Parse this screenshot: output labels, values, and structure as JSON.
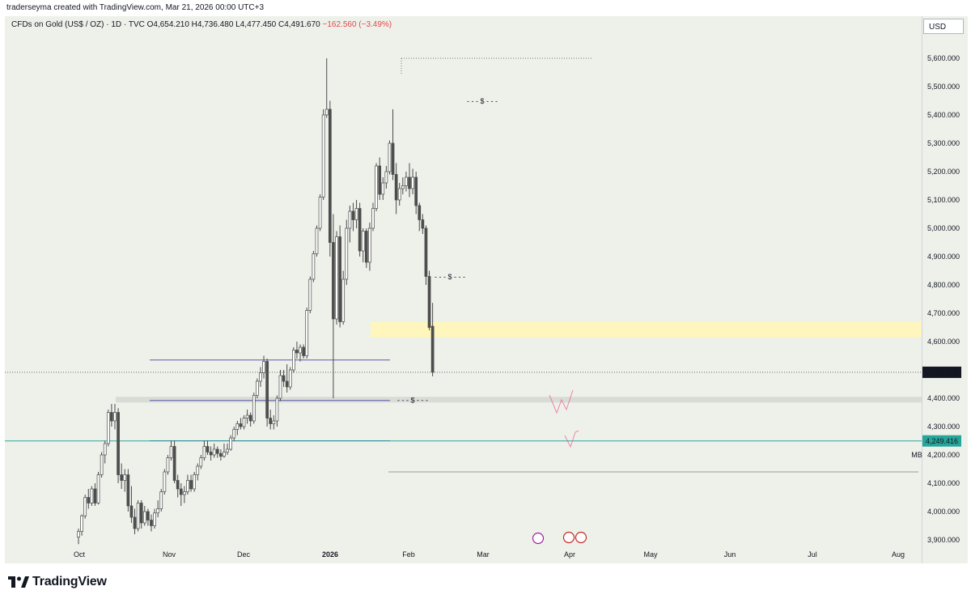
{
  "header": {
    "caption": "traderseyma created with TradingView.com, Mar 21, 2026 00:00 UTC+3"
  },
  "legend": {
    "symbol": "CFDs on Gold (US$ / OZ) · 1D · TVC",
    "open": "O4,654.210",
    "high": "H4,736.480",
    "low": "L4,477.450",
    "close": "C4,491.670",
    "change": "−162.560 (−3.49%)"
  },
  "price_scale": {
    "currency": "USD"
  },
  "colors": {
    "up": "#ffffff",
    "down": "#4e4e4e",
    "wick": "#4a4a4a",
    "zone": "#fff6b8",
    "support": "#26a69a",
    "level": "#5a5aa8",
    "marker": "#ec407a"
  },
  "chart_data": {
    "type": "candlestick",
    "y_ticks": [
      "5,600.000",
      "5,500.000",
      "5,400.000",
      "5,300.000",
      "5,200.000",
      "5,100.000",
      "5,000.000",
      "4,900.000",
      "4,800.000",
      "4,700.000",
      "4,600.000",
      "4,500.000",
      "4,400.000",
      "4,300.000",
      "4,200.000",
      "4,100.000",
      "4,000.000",
      "3,900.000"
    ],
    "ylim": [
      3880,
      5650
    ],
    "x_ticks": [
      "Oct",
      "Nov",
      "Dec",
      "2026",
      "Feb",
      "Mar",
      "Apr",
      "May",
      "Jun",
      "Jul",
      "Aug"
    ],
    "last_price": {
      "value": 4491.67,
      "label": "4,491.670"
    },
    "support_line": {
      "value": 4249.416,
      "label": "4,249.416"
    },
    "zone": {
      "from": 4615,
      "to": 4670
    },
    "grey_band": {
      "from": 4385,
      "to": 4405
    },
    "extra_label": "MB",
    "series": [
      {
        "o": 3910,
        "h": 3940,
        "l": 3885,
        "c": 3930
      },
      {
        "o": 3930,
        "h": 3990,
        "l": 3915,
        "c": 3985
      },
      {
        "o": 3985,
        "h": 4060,
        "l": 3975,
        "c": 4050
      },
      {
        "o": 4050,
        "h": 4080,
        "l": 4010,
        "c": 4030
      },
      {
        "o": 4030,
        "h": 4090,
        "l": 4020,
        "c": 4080
      },
      {
        "o": 4080,
        "h": 4100,
        "l": 4020,
        "c": 4030
      },
      {
        "o": 4030,
        "h": 4140,
        "l": 4025,
        "c": 4130
      },
      {
        "o": 4130,
        "h": 4210,
        "l": 4120,
        "c": 4200
      },
      {
        "o": 4200,
        "h": 4250,
        "l": 4170,
        "c": 4240
      },
      {
        "o": 4240,
        "h": 4360,
        "l": 4230,
        "c": 4350
      },
      {
        "o": 4350,
        "h": 4380,
        "l": 4300,
        "c": 4320
      },
      {
        "o": 4320,
        "h": 4380,
        "l": 4290,
        "c": 4350
      },
      {
        "o": 4350,
        "h": 4365,
        "l": 4100,
        "c": 4130
      },
      {
        "o": 4130,
        "h": 4170,
        "l": 4080,
        "c": 4110
      },
      {
        "o": 4110,
        "h": 4150,
        "l": 4070,
        "c": 4130
      },
      {
        "o": 4130,
        "h": 4150,
        "l": 4000,
        "c": 4020
      },
      {
        "o": 4020,
        "h": 4090,
        "l": 3960,
        "c": 3980
      },
      {
        "o": 3980,
        "h": 4010,
        "l": 3920,
        "c": 3940
      },
      {
        "o": 3940,
        "h": 4040,
        "l": 3930,
        "c": 4030
      },
      {
        "o": 4030,
        "h": 4040,
        "l": 3940,
        "c": 3960
      },
      {
        "o": 3960,
        "h": 4020,
        "l": 3950,
        "c": 4000
      },
      {
        "o": 4000,
        "h": 4010,
        "l": 3950,
        "c": 3970
      },
      {
        "o": 3970,
        "h": 3990,
        "l": 3930,
        "c": 3950
      },
      {
        "o": 3950,
        "h": 4010,
        "l": 3940,
        "c": 3995
      },
      {
        "o": 3995,
        "h": 4040,
        "l": 3980,
        "c": 4010
      },
      {
        "o": 4010,
        "h": 4080,
        "l": 4000,
        "c": 4070
      },
      {
        "o": 4070,
        "h": 4150,
        "l": 4060,
        "c": 4140
      },
      {
        "o": 4140,
        "h": 4200,
        "l": 4130,
        "c": 4190
      },
      {
        "o": 4190,
        "h": 4250,
        "l": 4180,
        "c": 4230
      },
      {
        "o": 4230,
        "h": 4250,
        "l": 4100,
        "c": 4110
      },
      {
        "o": 4110,
        "h": 4130,
        "l": 4050,
        "c": 4080
      },
      {
        "o": 4080,
        "h": 4100,
        "l": 4020,
        "c": 4060
      },
      {
        "o": 4060,
        "h": 4090,
        "l": 4030,
        "c": 4070
      },
      {
        "o": 4070,
        "h": 4130,
        "l": 4060,
        "c": 4110
      },
      {
        "o": 4110,
        "h": 4130,
        "l": 4070,
        "c": 4080
      },
      {
        "o": 4080,
        "h": 4140,
        "l": 4070,
        "c": 4130
      },
      {
        "o": 4130,
        "h": 4170,
        "l": 4110,
        "c": 4160
      },
      {
        "o": 4160,
        "h": 4200,
        "l": 4150,
        "c": 4190
      },
      {
        "o": 4190,
        "h": 4250,
        "l": 4180,
        "c": 4230
      },
      {
        "o": 4230,
        "h": 4250,
        "l": 4200,
        "c": 4210
      },
      {
        "o": 4210,
        "h": 4230,
        "l": 4180,
        "c": 4200
      },
      {
        "o": 4200,
        "h": 4240,
        "l": 4190,
        "c": 4220
      },
      {
        "o": 4220,
        "h": 4230,
        "l": 4190,
        "c": 4205
      },
      {
        "o": 4205,
        "h": 4220,
        "l": 4180,
        "c": 4195
      },
      {
        "o": 4195,
        "h": 4240,
        "l": 4190,
        "c": 4210
      },
      {
        "o": 4210,
        "h": 4240,
        "l": 4200,
        "c": 4220
      },
      {
        "o": 4220,
        "h": 4270,
        "l": 4215,
        "c": 4260
      },
      {
        "o": 4260,
        "h": 4300,
        "l": 4250,
        "c": 4290
      },
      {
        "o": 4290,
        "h": 4320,
        "l": 4270,
        "c": 4310
      },
      {
        "o": 4310,
        "h": 4330,
        "l": 4290,
        "c": 4300
      },
      {
        "o": 4300,
        "h": 4340,
        "l": 4290,
        "c": 4330
      },
      {
        "o": 4330,
        "h": 4360,
        "l": 4310,
        "c": 4340
      },
      {
        "o": 4340,
        "h": 4350,
        "l": 4300,
        "c": 4320
      },
      {
        "o": 4320,
        "h": 4420,
        "l": 4310,
        "c": 4410
      },
      {
        "o": 4410,
        "h": 4470,
        "l": 4400,
        "c": 4460
      },
      {
        "o": 4460,
        "h": 4510,
        "l": 4440,
        "c": 4490
      },
      {
        "o": 4490,
        "h": 4550,
        "l": 4470,
        "c": 4530
      },
      {
        "o": 4530,
        "h": 4540,
        "l": 4300,
        "c": 4330
      },
      {
        "o": 4330,
        "h": 4360,
        "l": 4290,
        "c": 4310
      },
      {
        "o": 4310,
        "h": 4340,
        "l": 4290,
        "c": 4320
      },
      {
        "o": 4320,
        "h": 4410,
        "l": 4300,
        "c": 4400
      },
      {
        "o": 4400,
        "h": 4500,
        "l": 4390,
        "c": 4480
      },
      {
        "o": 4480,
        "h": 4500,
        "l": 4440,
        "c": 4460
      },
      {
        "o": 4460,
        "h": 4520,
        "l": 4420,
        "c": 4440
      },
      {
        "o": 4440,
        "h": 4510,
        "l": 4430,
        "c": 4500
      },
      {
        "o": 4500,
        "h": 4580,
        "l": 4490,
        "c": 4570
      },
      {
        "o": 4570,
        "h": 4600,
        "l": 4540,
        "c": 4560
      },
      {
        "o": 4560,
        "h": 4590,
        "l": 4530,
        "c": 4580
      },
      {
        "o": 4580,
        "h": 4590,
        "l": 4540,
        "c": 4550
      },
      {
        "o": 4550,
        "h": 4720,
        "l": 4540,
        "c": 4710
      },
      {
        "o": 4710,
        "h": 4830,
        "l": 4700,
        "c": 4820
      },
      {
        "o": 4820,
        "h": 4920,
        "l": 4810,
        "c": 4910
      },
      {
        "o": 4910,
        "h": 5010,
        "l": 4900,
        "c": 5000
      },
      {
        "o": 5000,
        "h": 5120,
        "l": 4990,
        "c": 5110
      },
      {
        "o": 5110,
        "h": 5420,
        "l": 5100,
        "c": 5400
      },
      {
        "o": 5400,
        "h": 5600,
        "l": 5390,
        "c": 5420
      },
      {
        "o": 5420,
        "h": 5450,
        "l": 4900,
        "c": 4950
      },
      {
        "o": 4950,
        "h": 5050,
        "l": 4400,
        "c": 4680
      },
      {
        "o": 4680,
        "h": 4990,
        "l": 4660,
        "c": 4970
      },
      {
        "o": 4970,
        "h": 5010,
        "l": 4650,
        "c": 4670
      },
      {
        "o": 4670,
        "h": 4850,
        "l": 4660,
        "c": 4820
      },
      {
        "o": 4820,
        "h": 5030,
        "l": 4800,
        "c": 5000
      },
      {
        "o": 5000,
        "h": 5080,
        "l": 4950,
        "c": 5060
      },
      {
        "o": 5060,
        "h": 5090,
        "l": 4990,
        "c": 5030
      },
      {
        "o": 5030,
        "h": 5100,
        "l": 5000,
        "c": 5070
      },
      {
        "o": 5070,
        "h": 5090,
        "l": 4900,
        "c": 4920
      },
      {
        "o": 4920,
        "h": 5000,
        "l": 4880,
        "c": 4990
      },
      {
        "o": 4990,
        "h": 5000,
        "l": 4860,
        "c": 4880
      },
      {
        "o": 4880,
        "h": 5020,
        "l": 4850,
        "c": 5000
      },
      {
        "o": 5000,
        "h": 5090,
        "l": 4990,
        "c": 5070
      },
      {
        "o": 5070,
        "h": 5230,
        "l": 5060,
        "c": 5220
      },
      {
        "o": 5220,
        "h": 5250,
        "l": 5100,
        "c": 5120
      },
      {
        "o": 5120,
        "h": 5180,
        "l": 5100,
        "c": 5160
      },
      {
        "o": 5160,
        "h": 5220,
        "l": 5140,
        "c": 5200
      },
      {
        "o": 5200,
        "h": 5310,
        "l": 5190,
        "c": 5300
      },
      {
        "o": 5300,
        "h": 5420,
        "l": 5170,
        "c": 5190
      },
      {
        "o": 5190,
        "h": 5230,
        "l": 5050,
        "c": 5100
      },
      {
        "o": 5100,
        "h": 5160,
        "l": 5080,
        "c": 5140
      },
      {
        "o": 5140,
        "h": 5180,
        "l": 5120,
        "c": 5150
      },
      {
        "o": 5150,
        "h": 5200,
        "l": 5130,
        "c": 5180
      },
      {
        "o": 5180,
        "h": 5230,
        "l": 5110,
        "c": 5140
      },
      {
        "o": 5140,
        "h": 5210,
        "l": 5120,
        "c": 5180
      },
      {
        "o": 5180,
        "h": 5200,
        "l": 5050,
        "c": 5080
      },
      {
        "o": 5080,
        "h": 5090,
        "l": 4990,
        "c": 5030
      },
      {
        "o": 5030,
        "h": 5050,
        "l": 4980,
        "c": 5000
      },
      {
        "o": 5000,
        "h": 5010,
        "l": 4800,
        "c": 4830
      },
      {
        "o": 4830,
        "h": 4850,
        "l": 4640,
        "c": 4650
      },
      {
        "o": 4654.21,
        "h": 4736.48,
        "l": 4477.45,
        "c": 4491.67
      }
    ]
  }
}
